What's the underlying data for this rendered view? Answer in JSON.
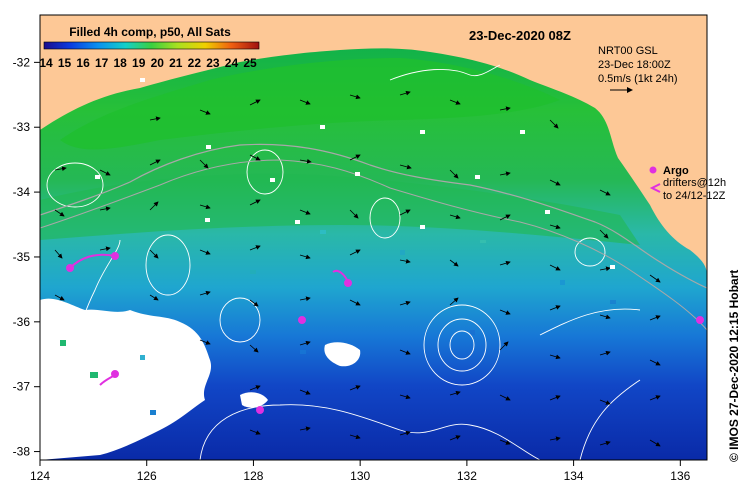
{
  "title": "23-Dec-2020 08Z",
  "colorbar": {
    "title": "Filled 4h comp, p50, All Sats",
    "ticks": [
      "14",
      "15",
      "16",
      "17",
      "18",
      "19",
      "20",
      "21",
      "22",
      "23",
      "24",
      "25"
    ]
  },
  "current_legend": {
    "line1": "NRT00 GSL",
    "line2": "23-Dec 18:00Z",
    "line3": "0.5m/s (1kt 24h)"
  },
  "argo_legend": {
    "label": "Argo",
    "line1": "drifters@12h",
    "line2": "to 24/12-12Z"
  },
  "credit": "© IMOS 27-Dec-2020 12:15 Hobart",
  "axes": {
    "x_ticks": [
      "124",
      "126",
      "128",
      "130",
      "132",
      "134",
      "136"
    ],
    "y_ticks": [
      "-32",
      "-33",
      "-34",
      "-35",
      "-36",
      "-37",
      "-38"
    ]
  },
  "colors": {
    "land": "#fdc896",
    "argo": "#e030e0"
  }
}
